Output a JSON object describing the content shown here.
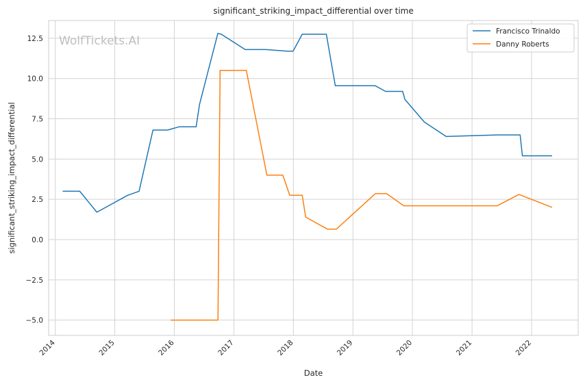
{
  "chart_data": {
    "type": "line",
    "title": "significant_striking_impact_differential over time",
    "xlabel": "Date",
    "ylabel": "significant_striking_impact_differential",
    "watermark": "WolfTickets.AI",
    "xlim": [
      "2013-11-21",
      "2022-10-14"
    ],
    "ylim": [
      -5.95,
      13.6
    ],
    "x_ticks": [
      "2014",
      "2015",
      "2016",
      "2017",
      "2018",
      "2019",
      "2020",
      "2021",
      "2022"
    ],
    "y_ticks": [
      "12.5",
      "10.0",
      "7.5",
      "5.0",
      "2.5",
      "0.0",
      "−2.5",
      "−5.0"
    ],
    "y_tick_values": [
      12.5,
      10.0,
      7.5,
      5.0,
      2.5,
      0.0,
      -2.5,
      -5.0
    ],
    "grid": true,
    "legend_position": "top-right",
    "series": [
      {
        "name": "Francisco Trinaldo",
        "color": "#1f77b4",
        "points": [
          [
            "2014-02-15",
            3.0
          ],
          [
            "2014-05-31",
            3.0
          ],
          [
            "2014-09-13",
            1.7
          ],
          [
            "2015-03-21",
            2.75
          ],
          [
            "2015-05-30",
            3.0
          ],
          [
            "2015-08-23",
            6.8
          ],
          [
            "2015-11-21",
            6.8
          ],
          [
            "2016-01-30",
            7.0
          ],
          [
            "2016-05-14",
            7.0
          ],
          [
            "2016-06-04",
            8.4
          ],
          [
            "2016-09-24",
            12.8
          ],
          [
            "2016-10-15",
            12.75
          ],
          [
            "2017-03-11",
            11.8
          ],
          [
            "2017-07-15",
            11.8
          ],
          [
            "2017-11-25",
            11.7
          ],
          [
            "2017-12-30",
            11.7
          ],
          [
            "2018-02-24",
            12.75
          ],
          [
            "2018-07-22",
            12.75
          ],
          [
            "2018-09-15",
            9.55
          ],
          [
            "2019-05-18",
            9.55
          ],
          [
            "2019-07-20",
            9.2
          ],
          [
            "2019-11-02",
            9.2
          ],
          [
            "2019-11-16",
            8.7
          ],
          [
            "2020-03-14",
            7.3
          ],
          [
            "2020-07-26",
            6.4
          ],
          [
            "2021-06-05",
            6.5
          ],
          [
            "2021-10-23",
            6.5
          ],
          [
            "2021-11-06",
            5.2
          ],
          [
            "2022-05-07",
            5.2
          ]
        ]
      },
      {
        "name": "Danny Roberts",
        "color": "#ff7f0e",
        "points": [
          [
            "2015-12-10",
            -5.0
          ],
          [
            "2016-09-25",
            -5.0
          ],
          [
            "2016-10-08",
            10.5
          ],
          [
            "2017-03-18",
            10.5
          ],
          [
            "2017-07-22",
            4.0
          ],
          [
            "2017-10-28",
            4.0
          ],
          [
            "2017-12-09",
            2.75
          ],
          [
            "2018-02-24",
            2.75
          ],
          [
            "2018-03-17",
            1.4
          ],
          [
            "2018-07-28",
            0.65
          ],
          [
            "2018-09-22",
            0.65
          ],
          [
            "2019-05-18",
            2.85
          ],
          [
            "2019-07-27",
            2.85
          ],
          [
            "2019-11-09",
            2.1
          ],
          [
            "2021-06-05",
            2.1
          ],
          [
            "2021-10-16",
            2.8
          ],
          [
            "2022-05-07",
            2.0
          ]
        ]
      }
    ]
  }
}
